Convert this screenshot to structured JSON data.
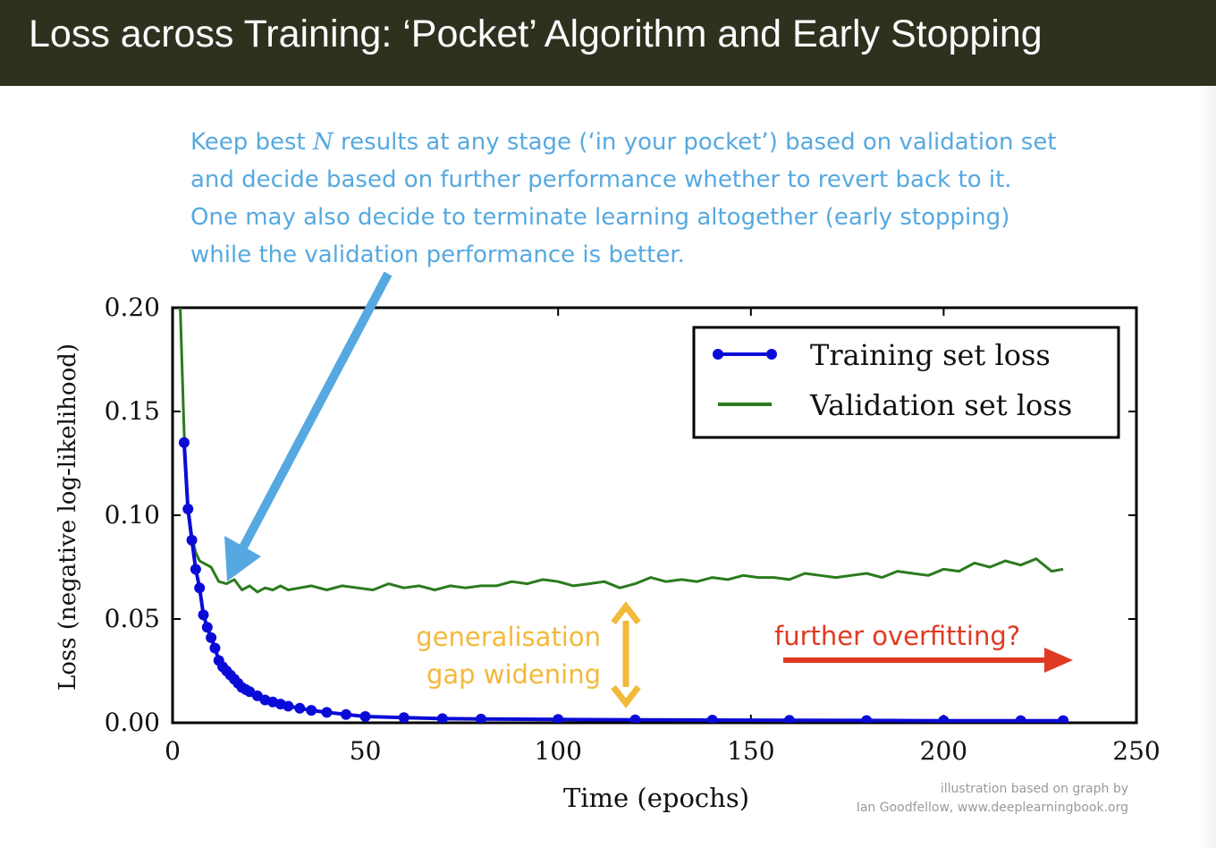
{
  "slide": {
    "title": "Loss across Training: ‘Pocket’ Algorithm and Early Stopping",
    "note": {
      "line1_pre": "Keep best ",
      "line1_var": "N",
      "line1_post": " results at any stage (‘in your pocket’) based on validation set",
      "line2": "and decide based on further performance whether to revert back to it.",
      "line3": "One may also decide to terminate learning altogether (early stopping)",
      "line4": "while the validation performance is better."
    },
    "gap_label_1": "generalisation",
    "gap_label_2": "gap widening",
    "overfit_label": "further overfitting?",
    "credit_line1": "illustration based on graph by",
    "credit_line2": "Ian Goodfellow, www.deeplearningbook.org"
  },
  "colors": {
    "title_bar": "#2d321f",
    "note": "#56a9e0",
    "training_series": "#0b0bd8",
    "validation_series": "#2b7a1e",
    "gap_arrow": "#f2b93a",
    "overfit_arrow": "#e03a22"
  },
  "chart_data": {
    "type": "line",
    "xlabel": "Time (epochs)",
    "ylabel": "Loss (negative log-likelihood)",
    "xlim": [
      0,
      250
    ],
    "ylim": [
      0,
      0.2
    ],
    "x_ticks": [
      0,
      50,
      100,
      150,
      200,
      250
    ],
    "x_tick_labels": [
      "0",
      "50",
      "100",
      "150",
      "200",
      "250"
    ],
    "y_ticks": [
      0,
      0.05,
      0.1,
      0.15,
      0.2
    ],
    "y_tick_labels": [
      "0.00",
      "0.05",
      "0.10",
      "0.15",
      "0.20"
    ],
    "legend_position": "top-right",
    "grid": false,
    "series": [
      {
        "name": "Training set loss",
        "marker": "circle",
        "x": [
          3,
          4,
          5,
          6,
          7,
          8,
          9,
          10,
          11,
          12,
          13,
          14,
          15,
          16,
          17,
          18,
          19,
          20,
          22,
          24,
          26,
          28,
          30,
          33,
          36,
          40,
          45,
          50,
          60,
          70,
          80,
          100,
          120,
          140,
          160,
          180,
          200,
          220,
          231
        ],
        "y": [
          0.135,
          0.103,
          0.088,
          0.074,
          0.065,
          0.052,
          0.046,
          0.041,
          0.036,
          0.03,
          0.027,
          0.025,
          0.023,
          0.021,
          0.019,
          0.017,
          0.016,
          0.015,
          0.013,
          0.011,
          0.01,
          0.009,
          0.008,
          0.007,
          0.006,
          0.005,
          0.004,
          0.003,
          0.0025,
          0.002,
          0.0018,
          0.0016,
          0.0014,
          0.0013,
          0.0012,
          0.0011,
          0.001,
          0.001,
          0.001
        ]
      },
      {
        "name": "Validation set loss",
        "marker": "none",
        "x": [
          2,
          3,
          4,
          5,
          6,
          7,
          8,
          10,
          12,
          14,
          16,
          18,
          20,
          22,
          24,
          26,
          28,
          30,
          33,
          36,
          40,
          44,
          48,
          52,
          56,
          60,
          64,
          68,
          72,
          76,
          80,
          84,
          88,
          92,
          96,
          100,
          104,
          108,
          112,
          116,
          120,
          124,
          128,
          132,
          136,
          140,
          144,
          148,
          152,
          156,
          160,
          164,
          168,
          172,
          176,
          180,
          184,
          188,
          192,
          196,
          200,
          204,
          208,
          212,
          216,
          220,
          224,
          228,
          231
        ],
        "y": [
          0.2,
          0.14,
          0.105,
          0.09,
          0.082,
          0.078,
          0.077,
          0.075,
          0.068,
          0.067,
          0.069,
          0.064,
          0.066,
          0.063,
          0.065,
          0.064,
          0.066,
          0.064,
          0.065,
          0.066,
          0.064,
          0.066,
          0.065,
          0.064,
          0.067,
          0.065,
          0.066,
          0.064,
          0.066,
          0.065,
          0.066,
          0.066,
          0.068,
          0.067,
          0.069,
          0.068,
          0.066,
          0.067,
          0.068,
          0.065,
          0.067,
          0.07,
          0.068,
          0.069,
          0.068,
          0.07,
          0.069,
          0.071,
          0.07,
          0.07,
          0.069,
          0.072,
          0.071,
          0.07,
          0.071,
          0.072,
          0.07,
          0.073,
          0.072,
          0.071,
          0.074,
          0.073,
          0.077,
          0.075,
          0.078,
          0.076,
          0.079,
          0.073,
          0.074
        ]
      }
    ]
  }
}
